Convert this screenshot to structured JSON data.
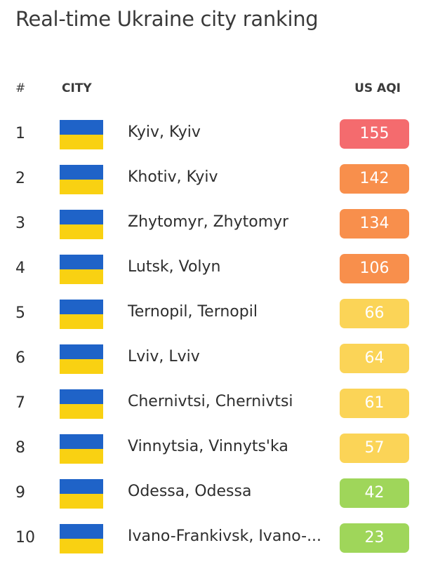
{
  "page": {
    "title": "Real-time Ukraine city ranking"
  },
  "table": {
    "headers": {
      "rank": "#",
      "city": "CITY",
      "aqi": "US AQI"
    },
    "rows": [
      {
        "rank": "1",
        "city": "Kyiv, Kyiv",
        "aqi": "155",
        "color": "#f46b6e",
        "flag_icon": "ukraine-flag-icon"
      },
      {
        "rank": "2",
        "city": "Khotiv, Kyiv",
        "aqi": "142",
        "color": "#f88f4c",
        "flag_icon": "ukraine-flag-icon"
      },
      {
        "rank": "3",
        "city": "Zhytomyr, Zhytomyr",
        "aqi": "134",
        "color": "#f88f4c",
        "flag_icon": "ukraine-flag-icon"
      },
      {
        "rank": "4",
        "city": "Lutsk, Volyn",
        "aqi": "106",
        "color": "#f88f4c",
        "flag_icon": "ukraine-flag-icon"
      },
      {
        "rank": "5",
        "city": "Ternopil, Ternopil",
        "aqi": "66",
        "color": "#fbd457",
        "flag_icon": "ukraine-flag-icon"
      },
      {
        "rank": "6",
        "city": "Lviv, Lviv",
        "aqi": "64",
        "color": "#fbd457",
        "flag_icon": "ukraine-flag-icon"
      },
      {
        "rank": "7",
        "city": "Chernivtsi, Chernivtsi",
        "aqi": "61",
        "color": "#fbd457",
        "flag_icon": "ukraine-flag-icon"
      },
      {
        "rank": "8",
        "city": "Vinnytsia, Vinnyts'ka",
        "aqi": "57",
        "color": "#fbd457",
        "flag_icon": "ukraine-flag-icon"
      },
      {
        "rank": "9",
        "city": "Odessa, Odessa",
        "aqi": "42",
        "color": "#9fd65a",
        "flag_icon": "ukraine-flag-icon"
      },
      {
        "rank": "10",
        "city": "Ivano-Frankivsk, Ivano-...",
        "aqi": "23",
        "color": "#9fd65a",
        "flag_icon": "ukraine-flag-icon"
      }
    ]
  },
  "colors": {
    "flag_blue": "#1f63c8",
    "flag_yellow": "#f9d112"
  }
}
